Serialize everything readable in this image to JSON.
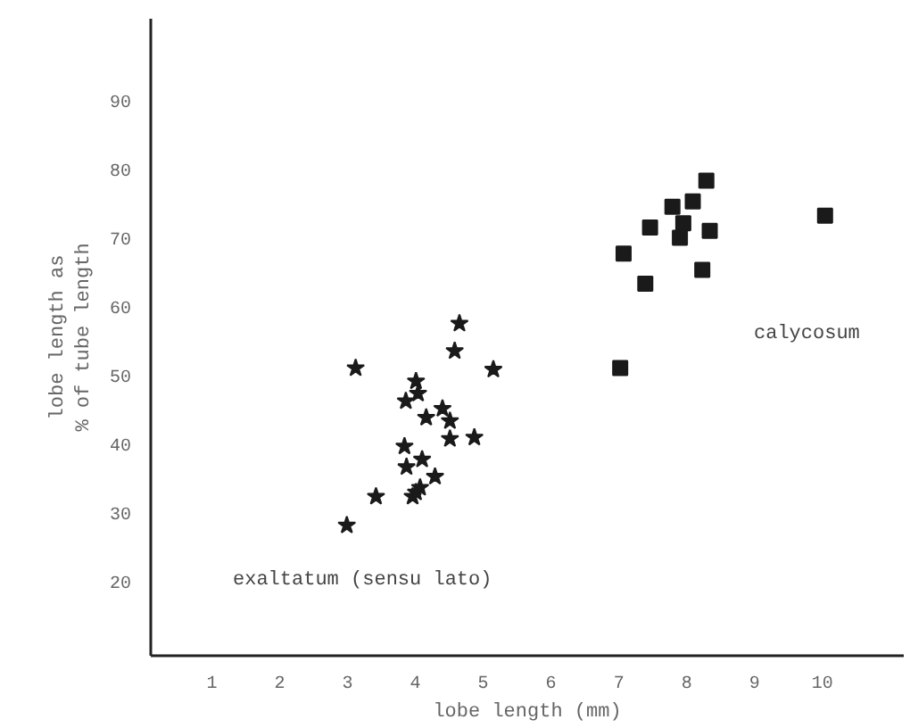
{
  "chart_data": {
    "type": "scatter",
    "xlabel": "lobe length (mm)",
    "ylabel": "lobe length as\n% of tube length",
    "xlim": [
      0.1,
      11.2
    ],
    "ylim": [
      9.2,
      102
    ],
    "xticks": [
      1,
      2,
      3,
      4,
      5,
      6,
      7,
      8,
      9,
      10
    ],
    "yticks": [
      20,
      30,
      40,
      50,
      60,
      70,
      80,
      90
    ],
    "grid": false,
    "series": [
      {
        "color": "#1a1a1a",
        "marker": "star",
        "x": [
          4.65,
          4.58,
          3.12,
          5.15,
          4.01,
          4.04,
          3.86,
          4.16,
          4.4,
          4.51,
          4.51,
          4.87,
          3.84,
          4.1,
          3.87,
          4.29,
          4.07,
          4.01,
          3.96,
          3.42,
          2.99
        ],
        "values": [
          57.6,
          53.6,
          51.1,
          50.9,
          49.2,
          47.4,
          46.3,
          43.9,
          45.2,
          43.4,
          40.8,
          41.0,
          39.7,
          37.8,
          36.7,
          35.3,
          33.7,
          33.0,
          32.4,
          32.4,
          28.2
        ]
      },
      {
        "color": "#1a1a1a",
        "marker": "square",
        "x": [
          8.29,
          8.09,
          7.79,
          7.46,
          7.95,
          8.34,
          7.9,
          7.07,
          8.23,
          7.39,
          10.04,
          7.02
        ],
        "values": [
          78.4,
          75.4,
          74.6,
          71.6,
          72.2,
          71.1,
          70.1,
          67.8,
          65.4,
          63.4,
          73.3,
          51.1
        ]
      }
    ],
    "annotations": [
      "exaltatum (sensu lato)",
      "calycosum"
    ]
  }
}
